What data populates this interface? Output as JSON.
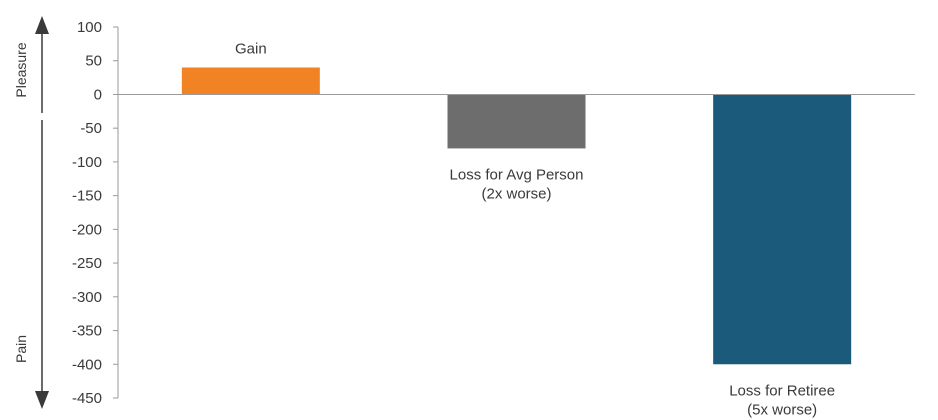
{
  "chart_data": {
    "type": "bar",
    "categories": [
      "Gain",
      "Loss for Avg Person",
      "Loss for Retiree"
    ],
    "values": [
      40,
      -80,
      -400
    ],
    "bar_labels": [
      [
        "Gain"
      ],
      [
        "Loss for Avg Person",
        "(2x worse)"
      ],
      [
        "Loss for Retiree",
        "(5x worse)"
      ]
    ],
    "colors": [
      "#F28325",
      "#6D6D6D",
      "#1B5A7A"
    ],
    "ylim": [
      -450,
      100
    ],
    "yticks": [
      100,
      50,
      0,
      -50,
      -100,
      -150,
      -200,
      -250,
      -300,
      -350,
      -400,
      -450
    ],
    "side_labels": {
      "top": "Pleasure",
      "bottom": "Pain"
    },
    "grid": false
  }
}
